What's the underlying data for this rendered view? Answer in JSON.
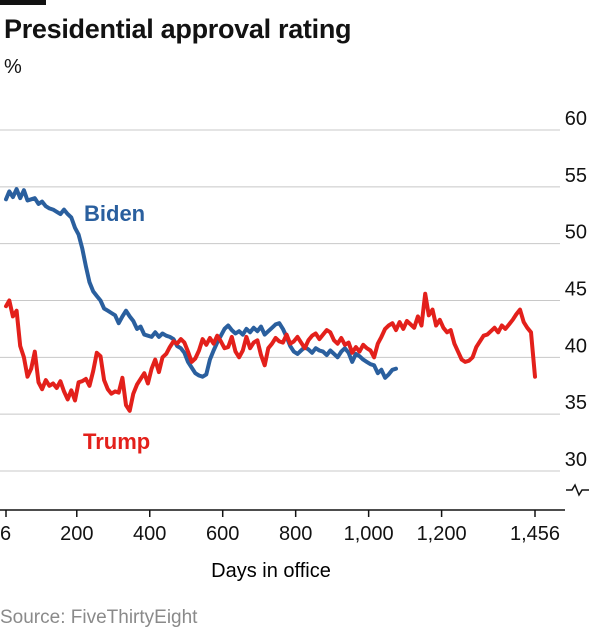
{
  "title": "Presidential approval rating",
  "unit": "%",
  "source": "Source: FiveThirtyEight",
  "colors": {
    "biden": "#2a5f9e",
    "trump": "#e3201b",
    "grid": "#c8c8c8",
    "axis": "#121212"
  },
  "chart_data": {
    "type": "line",
    "title": "Presidential approval rating",
    "ylabel": "%",
    "xlabel": "Days in office",
    "xlim": [
      6,
      1456
    ],
    "ylim": [
      30,
      60
    ],
    "axis_break": true,
    "y_ticks": [
      30,
      35,
      40,
      45,
      50,
      55,
      60
    ],
    "y_tick_labels": [
      "30",
      "35",
      "40",
      "45",
      "50",
      "55",
      "60"
    ],
    "x_ticks": [
      6,
      200,
      400,
      600,
      800,
      1000,
      1200,
      1456
    ],
    "x_tick_labels": [
      "6",
      "200",
      "400",
      "600",
      "800",
      "1,000",
      "1,200",
      "1,456"
    ],
    "series": [
      {
        "name": "Biden",
        "color": "#2a5f9e",
        "x": [
          6,
          15,
          25,
          35,
          45,
          55,
          65,
          75,
          85,
          95,
          105,
          115,
          125,
          135,
          145,
          155,
          165,
          175,
          185,
          195,
          205,
          215,
          225,
          235,
          245,
          255,
          265,
          275,
          285,
          295,
          305,
          315,
          325,
          335,
          345,
          355,
          365,
          375,
          385,
          395,
          405,
          415,
          425,
          435,
          445,
          455,
          465,
          475,
          485,
          495,
          505,
          515,
          525,
          535,
          545,
          555,
          565,
          575,
          585,
          595,
          605,
          615,
          625,
          635,
          645,
          655,
          665,
          675,
          685,
          695,
          705,
          715,
          725,
          735,
          745,
          755,
          765,
          775,
          785,
          795,
          805,
          815,
          825,
          835,
          845,
          855,
          865,
          875,
          885,
          895,
          905,
          915,
          925,
          935,
          945,
          955,
          965,
          975,
          985,
          995,
          1005,
          1015,
          1025,
          1035,
          1045,
          1055,
          1065,
          1075
        ],
        "y": [
          53.9,
          54.6,
          54.1,
          54.8,
          54.0,
          54.7,
          53.8,
          53.9,
          54.0,
          53.5,
          53.7,
          53.3,
          53.1,
          53.0,
          52.8,
          52.6,
          53.0,
          52.6,
          52.3,
          51.4,
          50.8,
          49.6,
          48.0,
          46.6,
          45.8,
          45.4,
          45.0,
          44.3,
          44.1,
          43.9,
          43.7,
          43.0,
          43.6,
          44.1,
          43.6,
          43.2,
          42.5,
          42.7,
          42.0,
          41.9,
          41.8,
          42.2,
          41.8,
          42.1,
          41.9,
          41.8,
          41.6,
          41.0,
          40.8,
          40.4,
          39.6,
          39.1,
          38.6,
          38.4,
          38.3,
          38.5,
          39.8,
          40.6,
          41.3,
          41.9,
          42.5,
          42.8,
          42.4,
          42.1,
          42.3,
          42.0,
          42.5,
          42.2,
          42.6,
          42.3,
          42.7,
          42.0,
          42.3,
          42.6,
          42.9,
          43.0,
          42.5,
          41.8,
          41.0,
          40.5,
          40.3,
          40.6,
          40.9,
          40.7,
          40.4,
          40.8,
          40.6,
          40.5,
          40.2,
          40.6,
          40.3,
          40.0,
          40.5,
          40.8,
          40.4,
          39.6,
          40.3,
          40.1,
          39.8,
          39.6,
          39.4,
          39.3,
          38.6,
          38.9,
          38.2,
          38.5,
          38.9,
          39.0
        ]
      },
      {
        "name": "Trump",
        "color": "#e3201b",
        "x": [
          6,
          15,
          25,
          35,
          45,
          55,
          65,
          75,
          85,
          95,
          105,
          115,
          125,
          135,
          145,
          155,
          165,
          175,
          185,
          195,
          205,
          215,
          225,
          235,
          245,
          255,
          265,
          275,
          285,
          295,
          305,
          315,
          325,
          335,
          345,
          355,
          365,
          375,
          385,
          395,
          405,
          415,
          425,
          435,
          445,
          455,
          465,
          475,
          485,
          495,
          505,
          515,
          525,
          535,
          545,
          555,
          565,
          575,
          585,
          595,
          605,
          615,
          625,
          635,
          645,
          655,
          665,
          675,
          685,
          695,
          705,
          715,
          725,
          735,
          745,
          755,
          765,
          775,
          785,
          795,
          805,
          815,
          825,
          835,
          845,
          855,
          865,
          875,
          885,
          895,
          905,
          915,
          925,
          935,
          945,
          955,
          965,
          975,
          985,
          995,
          1005,
          1015,
          1025,
          1035,
          1045,
          1055,
          1065,
          1075,
          1085,
          1095,
          1105,
          1115,
          1125,
          1135,
          1145,
          1155,
          1165,
          1175,
          1185,
          1195,
          1205,
          1215,
          1225,
          1235,
          1245,
          1255,
          1265,
          1275,
          1285,
          1295,
          1305,
          1315,
          1325,
          1335,
          1345,
          1355,
          1365,
          1375,
          1385,
          1395,
          1405,
          1415,
          1425,
          1435,
          1445,
          1456
        ],
        "y": [
          44.5,
          45.0,
          43.6,
          44.1,
          41.0,
          40.0,
          38.3,
          39.0,
          40.5,
          37.8,
          37.2,
          38.0,
          37.5,
          37.7,
          37.3,
          37.9,
          37.0,
          36.3,
          37.1,
          36.2,
          37.8,
          37.9,
          38.1,
          37.5,
          38.8,
          40.4,
          40.1,
          38.0,
          37.2,
          36.8,
          37.0,
          36.9,
          38.2,
          35.8,
          35.3,
          36.8,
          37.6,
          38.1,
          38.6,
          37.7,
          39.0,
          39.8,
          38.7,
          40.0,
          40.3,
          40.9,
          41.4,
          41.2,
          41.6,
          41.3,
          40.5,
          39.6,
          39.9,
          40.6,
          41.6,
          41.1,
          41.7,
          41.2,
          41.9,
          41.4,
          40.8,
          40.9,
          41.8,
          40.5,
          40.0,
          40.6,
          41.8,
          40.8,
          41.3,
          41.5,
          40.2,
          39.3,
          40.8,
          41.2,
          41.7,
          41.4,
          41.3,
          42.0,
          41.2,
          41.4,
          41.8,
          41.3,
          40.8,
          41.5,
          41.9,
          42.1,
          41.6,
          42.0,
          42.4,
          42.2,
          41.5,
          41.2,
          41.7,
          41.1,
          41.3,
          40.4,
          40.9,
          40.5,
          41.1,
          40.8,
          40.6,
          40.0,
          41.2,
          41.8,
          42.5,
          42.8,
          43.0,
          42.4,
          43.1,
          42.5,
          43.2,
          42.9,
          42.6,
          43.6,
          42.8,
          45.6,
          43.7,
          44.2,
          42.8,
          43.3,
          42.6,
          42.2,
          42.4,
          41.2,
          40.5,
          39.8,
          39.6,
          39.7,
          40.0,
          40.9,
          41.4,
          41.9,
          42.0,
          42.3,
          42.6,
          42.2,
          42.8,
          42.5,
          42.9,
          43.3,
          43.8,
          44.2,
          43.1,
          42.6,
          42.2,
          38.3
        ]
      }
    ]
  }
}
